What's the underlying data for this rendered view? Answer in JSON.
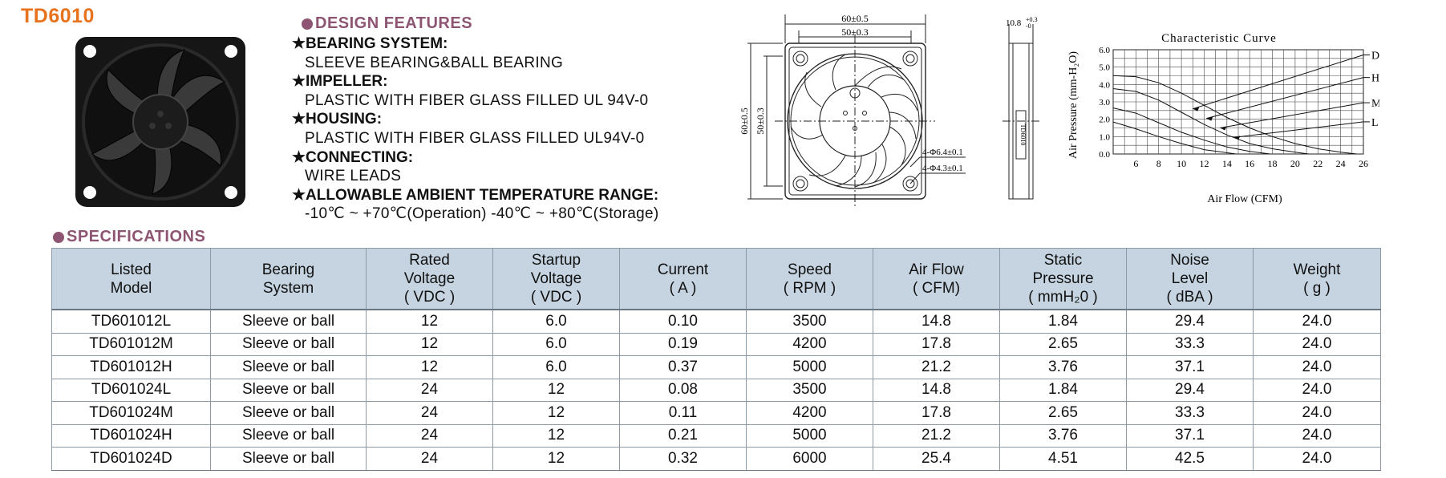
{
  "title": "TD6010",
  "design": {
    "heading": "DESIGN  FEATURES",
    "features": [
      {
        "head": "★BEARING SYSTEM:",
        "value": "SLEEVE BEARING&BALL BEARING"
      },
      {
        "head": "★IMPELLER:",
        "value": "PLASTIC WITH FIBER GLASS FILLED UL 94V-0"
      },
      {
        "head": "★HOUSING:",
        "value": "PLASTIC WITH FIBER GLASS FILLED UL94V-0"
      },
      {
        "head": "★CONNECTING:",
        "value": " WIRE LEADS"
      },
      {
        "head": "★ALLOWABLE AMBIENT TEMPERATURE RANGE:",
        "value": "-10℃ ~ +70℃(Operation)    -40℃ ~ +80℃(Storage)"
      }
    ]
  },
  "drawing": {
    "dim_outer_w": "60±0.5",
    "dim_inner_w": "50±0.3",
    "dim_outer_h": "60±0.5",
    "dim_inner_h": "50±0.3",
    "hole_large": "4-Φ6.4±0.1",
    "hole_small": "4-Φ4.3±0.1",
    "thickness": "10.8",
    "thickness_tol_upper": "+0.3",
    "thickness_tol_lower": "-0",
    "side_label": "TD6010"
  },
  "chart_data": {
    "type": "line",
    "title": "Characteristic Curve",
    "xlabel": "Air Flow (CFM)",
    "ylabel": "Air Pressure (mm-H₂O)",
    "xlim": [
      4,
      26
    ],
    "ylim": [
      0,
      6
    ],
    "x_ticks": [
      6,
      8,
      10,
      12,
      14,
      16,
      18,
      20,
      22,
      24,
      26
    ],
    "y_ticks": [
      "0.0",
      "1.0",
      "2.0",
      "3.0",
      "4.0",
      "5.0",
      "6.0"
    ],
    "grid": true,
    "series": [
      {
        "name": "D",
        "x": [
          4,
          6,
          8,
          10,
          12,
          14,
          16,
          18,
          20,
          22,
          24,
          25.4
        ],
        "y": [
          4.51,
          4.45,
          4.1,
          3.5,
          2.8,
          2.1,
          1.5,
          1.0,
          0.6,
          0.3,
          0.1,
          0
        ]
      },
      {
        "name": "H",
        "x": [
          4,
          6,
          8,
          10,
          12,
          14,
          16,
          18,
          20,
          21.2
        ],
        "y": [
          3.76,
          3.6,
          3.1,
          2.4,
          1.7,
          1.1,
          0.6,
          0.3,
          0.1,
          0
        ]
      },
      {
        "name": "M",
        "x": [
          4,
          6,
          8,
          10,
          12,
          14,
          16,
          17.8
        ],
        "y": [
          2.65,
          2.35,
          1.8,
          1.25,
          0.8,
          0.4,
          0.15,
          0
        ]
      },
      {
        "name": "L",
        "x": [
          4,
          6,
          8,
          10,
          12,
          14.8
        ],
        "y": [
          1.84,
          1.45,
          1.0,
          0.6,
          0.25,
          0
        ]
      }
    ],
    "impedance_lines": [
      {
        "label": "D",
        "to_x": 26,
        "to_y": 5.7
      },
      {
        "label": "H",
        "to_x": 26,
        "to_y": 4.4
      },
      {
        "label": "M",
        "to_x": 26,
        "to_y": 2.95
      },
      {
        "label": "L",
        "to_x": 26,
        "to_y": 1.85
      }
    ]
  },
  "specs": {
    "heading": "SPECIFICATIONS",
    "headers": [
      [
        "Listed",
        "Model"
      ],
      [
        "Bearing",
        "System"
      ],
      [
        "Rated",
        "Voltage",
        "( VDC )"
      ],
      [
        "Startup",
        "Voltage",
        "( VDC )"
      ],
      [
        "Current",
        "( A )"
      ],
      [
        "Speed",
        "( RPM )"
      ],
      [
        "Air Flow",
        "( CFM)"
      ],
      [
        "Static",
        "Pressure",
        "( mmH₂0 )"
      ],
      [
        "Noise",
        "Level",
        "( dBA )"
      ],
      [
        "Weight",
        "( g )"
      ]
    ],
    "rows": [
      [
        "TD601012L",
        "Sleeve or ball",
        "12",
        "6.0",
        "0.10",
        "3500",
        "14.8",
        "1.84",
        "29.4",
        "24.0"
      ],
      [
        "TD601012M",
        "Sleeve or ball",
        "12",
        "6.0",
        "0.19",
        "4200",
        "17.8",
        "2.65",
        "33.3",
        "24.0"
      ],
      [
        "TD601012H",
        "Sleeve or ball",
        "12",
        "6.0",
        "0.37",
        "5000",
        "21.2",
        "3.76",
        "37.1",
        "24.0"
      ],
      [
        "TD601024L",
        "Sleeve or ball",
        "24",
        "12",
        "0.08",
        "3500",
        "14.8",
        "1.84",
        "29.4",
        "24.0"
      ],
      [
        "TD601024M",
        "Sleeve or ball",
        "24",
        "12",
        "0.11",
        "4200",
        "17.8",
        "2.65",
        "33.3",
        "24.0"
      ],
      [
        "TD601024H",
        "Sleeve or ball",
        "24",
        "12",
        "0.21",
        "5000",
        "21.2",
        "3.76",
        "37.1",
        "24.0"
      ],
      [
        "TD601024D",
        "Sleeve or ball",
        "24",
        "12",
        "0.32",
        "6000",
        "25.4",
        "4.51",
        "42.5",
        "24.0"
      ]
    ]
  }
}
